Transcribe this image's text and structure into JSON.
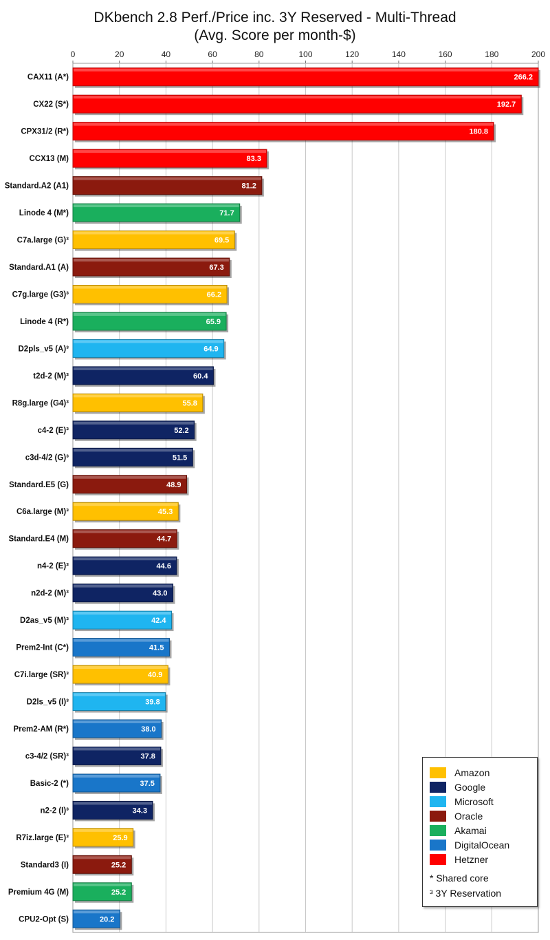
{
  "chart_data": {
    "type": "bar",
    "orientation": "horizontal",
    "title": "DKbench 2.8 Perf./Price inc. 3Y Reserved - Multi-Thread",
    "subtitle": "(Avg. Score per month-$)",
    "xlim": [
      0,
      200
    ],
    "xticks": [
      "0",
      "20",
      "40",
      "60",
      "80",
      "100",
      "120",
      "140",
      "160",
      "180",
      "200"
    ],
    "grid": true,
    "legend_position": "bottom-right",
    "categories": [
      "CAX11 (A*)",
      "CX22 (S*)",
      "CPX31/2 (R*)",
      "CCX13 (M)",
      "Standard.A2 (A1)",
      "Linode 4 (M*)",
      "C7a.large (G)³",
      "Standard.A1 (A)",
      "C7g.large (G3)³",
      "Linode 4 (R*)",
      "D2pls_v5 (A)³",
      "t2d-2 (M)³",
      "R8g.large (G4)³",
      "c4-2 (E)³",
      "c3d-4/2 (G)³",
      "Standard.E5 (G)",
      "C6a.large (M)³",
      "Standard.E4 (M)",
      "n4-2 (E)³",
      "n2d-2 (M)³",
      "D2as_v5 (M)³",
      "Prem2-Int (C*)",
      "C7i.large (SR)³",
      "D2ls_v5 (I)³",
      "Prem2-AM (R*)",
      "c3-4/2 (SR)³",
      "Basic-2 (*)",
      "n2-2 (I)³",
      "R7iz.large (E)³",
      "Standard3 (I)",
      "Premium 4G (M)",
      "CPU2-Opt (S)"
    ],
    "values": [
      266.2,
      192.7,
      180.8,
      83.3,
      81.2,
      71.7,
      69.5,
      67.3,
      66.2,
      65.9,
      64.9,
      60.4,
      55.8,
      52.2,
      51.5,
      48.9,
      45.3,
      44.7,
      44.6,
      43.0,
      42.4,
      41.5,
      40.9,
      39.8,
      38.0,
      37.8,
      37.5,
      34.3,
      25.9,
      25.2,
      25.2,
      20.2
    ],
    "value_labels": [
      "266.2",
      "192.7",
      "180.8",
      "83.3",
      "81.2",
      "71.7",
      "69.5",
      "67.3",
      "66.2",
      "65.9",
      "64.9",
      "60.4",
      "55.8",
      "52.2",
      "51.5",
      "48.9",
      "45.3",
      "44.7",
      "44.6",
      "43.0",
      "42.4",
      "41.5",
      "40.9",
      "39.8",
      "38.0",
      "37.8",
      "37.5",
      "34.3",
      "25.9",
      "25.2",
      "25.2",
      "20.2"
    ],
    "providers": [
      "Hetzner",
      "Hetzner",
      "Hetzner",
      "Hetzner",
      "Oracle",
      "Akamai",
      "Amazon",
      "Oracle",
      "Amazon",
      "Akamai",
      "Microsoft",
      "Google",
      "Amazon",
      "Google",
      "Google",
      "Oracle",
      "Amazon",
      "Oracle",
      "Google",
      "Google",
      "Microsoft",
      "DigitalOcean",
      "Amazon",
      "Microsoft",
      "DigitalOcean",
      "Google",
      "DigitalOcean",
      "Google",
      "Amazon",
      "Oracle",
      "Akamai",
      "DigitalOcean"
    ],
    "legend": [
      {
        "name": "Amazon",
        "color": "#FFC000"
      },
      {
        "name": "Google",
        "color": "#0F2463"
      },
      {
        "name": "Microsoft",
        "color": "#1FB5F0"
      },
      {
        "name": "Oracle",
        "color": "#8B1A0E"
      },
      {
        "name": "Akamai",
        "color": "#1AAF5D"
      },
      {
        "name": "DigitalOcean",
        "color": "#1976C9"
      },
      {
        "name": "Hetzner",
        "color": "#FF0000"
      }
    ],
    "notes": [
      "* Shared core",
      "³ 3Y Reservation"
    ]
  }
}
